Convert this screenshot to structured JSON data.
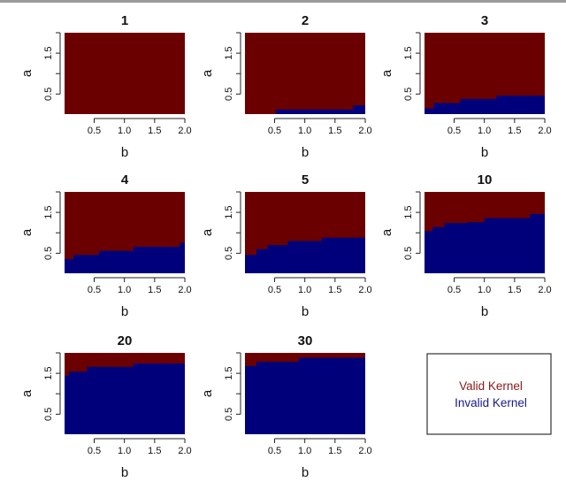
{
  "chart_data": {
    "type": "heatmap",
    "description_scale": "Each panel: region of (b,a) plane. For every b, a below boundary -> Invalid Kernel, above -> Valid Kernel.",
    "xlabel": "b",
    "ylabel": "a",
    "xlim": [
      0.01,
      2.0
    ],
    "ylim": [
      0.01,
      2.0
    ],
    "x_ticks": [
      "0.5",
      "1.0",
      "1.5",
      "2.0"
    ],
    "y_ticks": [
      "0.5",
      "1.5"
    ],
    "colors": {
      "valid": "#6b0000",
      "invalid": "#00007a"
    },
    "legend": {
      "valid_label": "Valid Kernel",
      "invalid_label": "Invalid Kernel",
      "position": "bottom-right"
    },
    "panels": [
      {
        "title": "1",
        "boundary": [
          [
            0.01,
            0.0
          ]
        ]
      },
      {
        "title": "2",
        "boundary": [
          [
            0.01,
            0.0
          ],
          [
            0.52,
            0.12
          ],
          [
            1.8,
            0.22
          ]
        ]
      },
      {
        "title": "3",
        "boundary": [
          [
            0.01,
            0.15
          ],
          [
            0.16,
            0.28
          ],
          [
            0.6,
            0.38
          ],
          [
            1.2,
            0.46
          ]
        ]
      },
      {
        "title": "4",
        "boundary": [
          [
            0.01,
            0.36
          ],
          [
            0.16,
            0.46
          ],
          [
            0.58,
            0.56
          ],
          [
            1.15,
            0.66
          ],
          [
            1.92,
            0.76
          ]
        ]
      },
      {
        "title": "5",
        "boundary": [
          [
            0.01,
            0.46
          ],
          [
            0.2,
            0.6
          ],
          [
            0.38,
            0.7
          ],
          [
            0.72,
            0.8
          ],
          [
            1.28,
            0.88
          ]
        ]
      },
      {
        "title": "10",
        "boundary": [
          [
            0.01,
            1.04
          ],
          [
            0.14,
            1.14
          ],
          [
            0.34,
            1.24
          ],
          [
            0.72,
            1.26
          ],
          [
            1.0,
            1.36
          ],
          [
            1.75,
            1.46
          ]
        ]
      },
      {
        "title": "20",
        "boundary": [
          [
            0.01,
            1.44
          ],
          [
            0.08,
            1.54
          ],
          [
            0.38,
            1.66
          ],
          [
            1.15,
            1.74
          ]
        ]
      },
      {
        "title": "30",
        "boundary": [
          [
            0.01,
            1.68
          ],
          [
            0.2,
            1.78
          ],
          [
            0.9,
            1.88
          ]
        ]
      }
    ]
  }
}
